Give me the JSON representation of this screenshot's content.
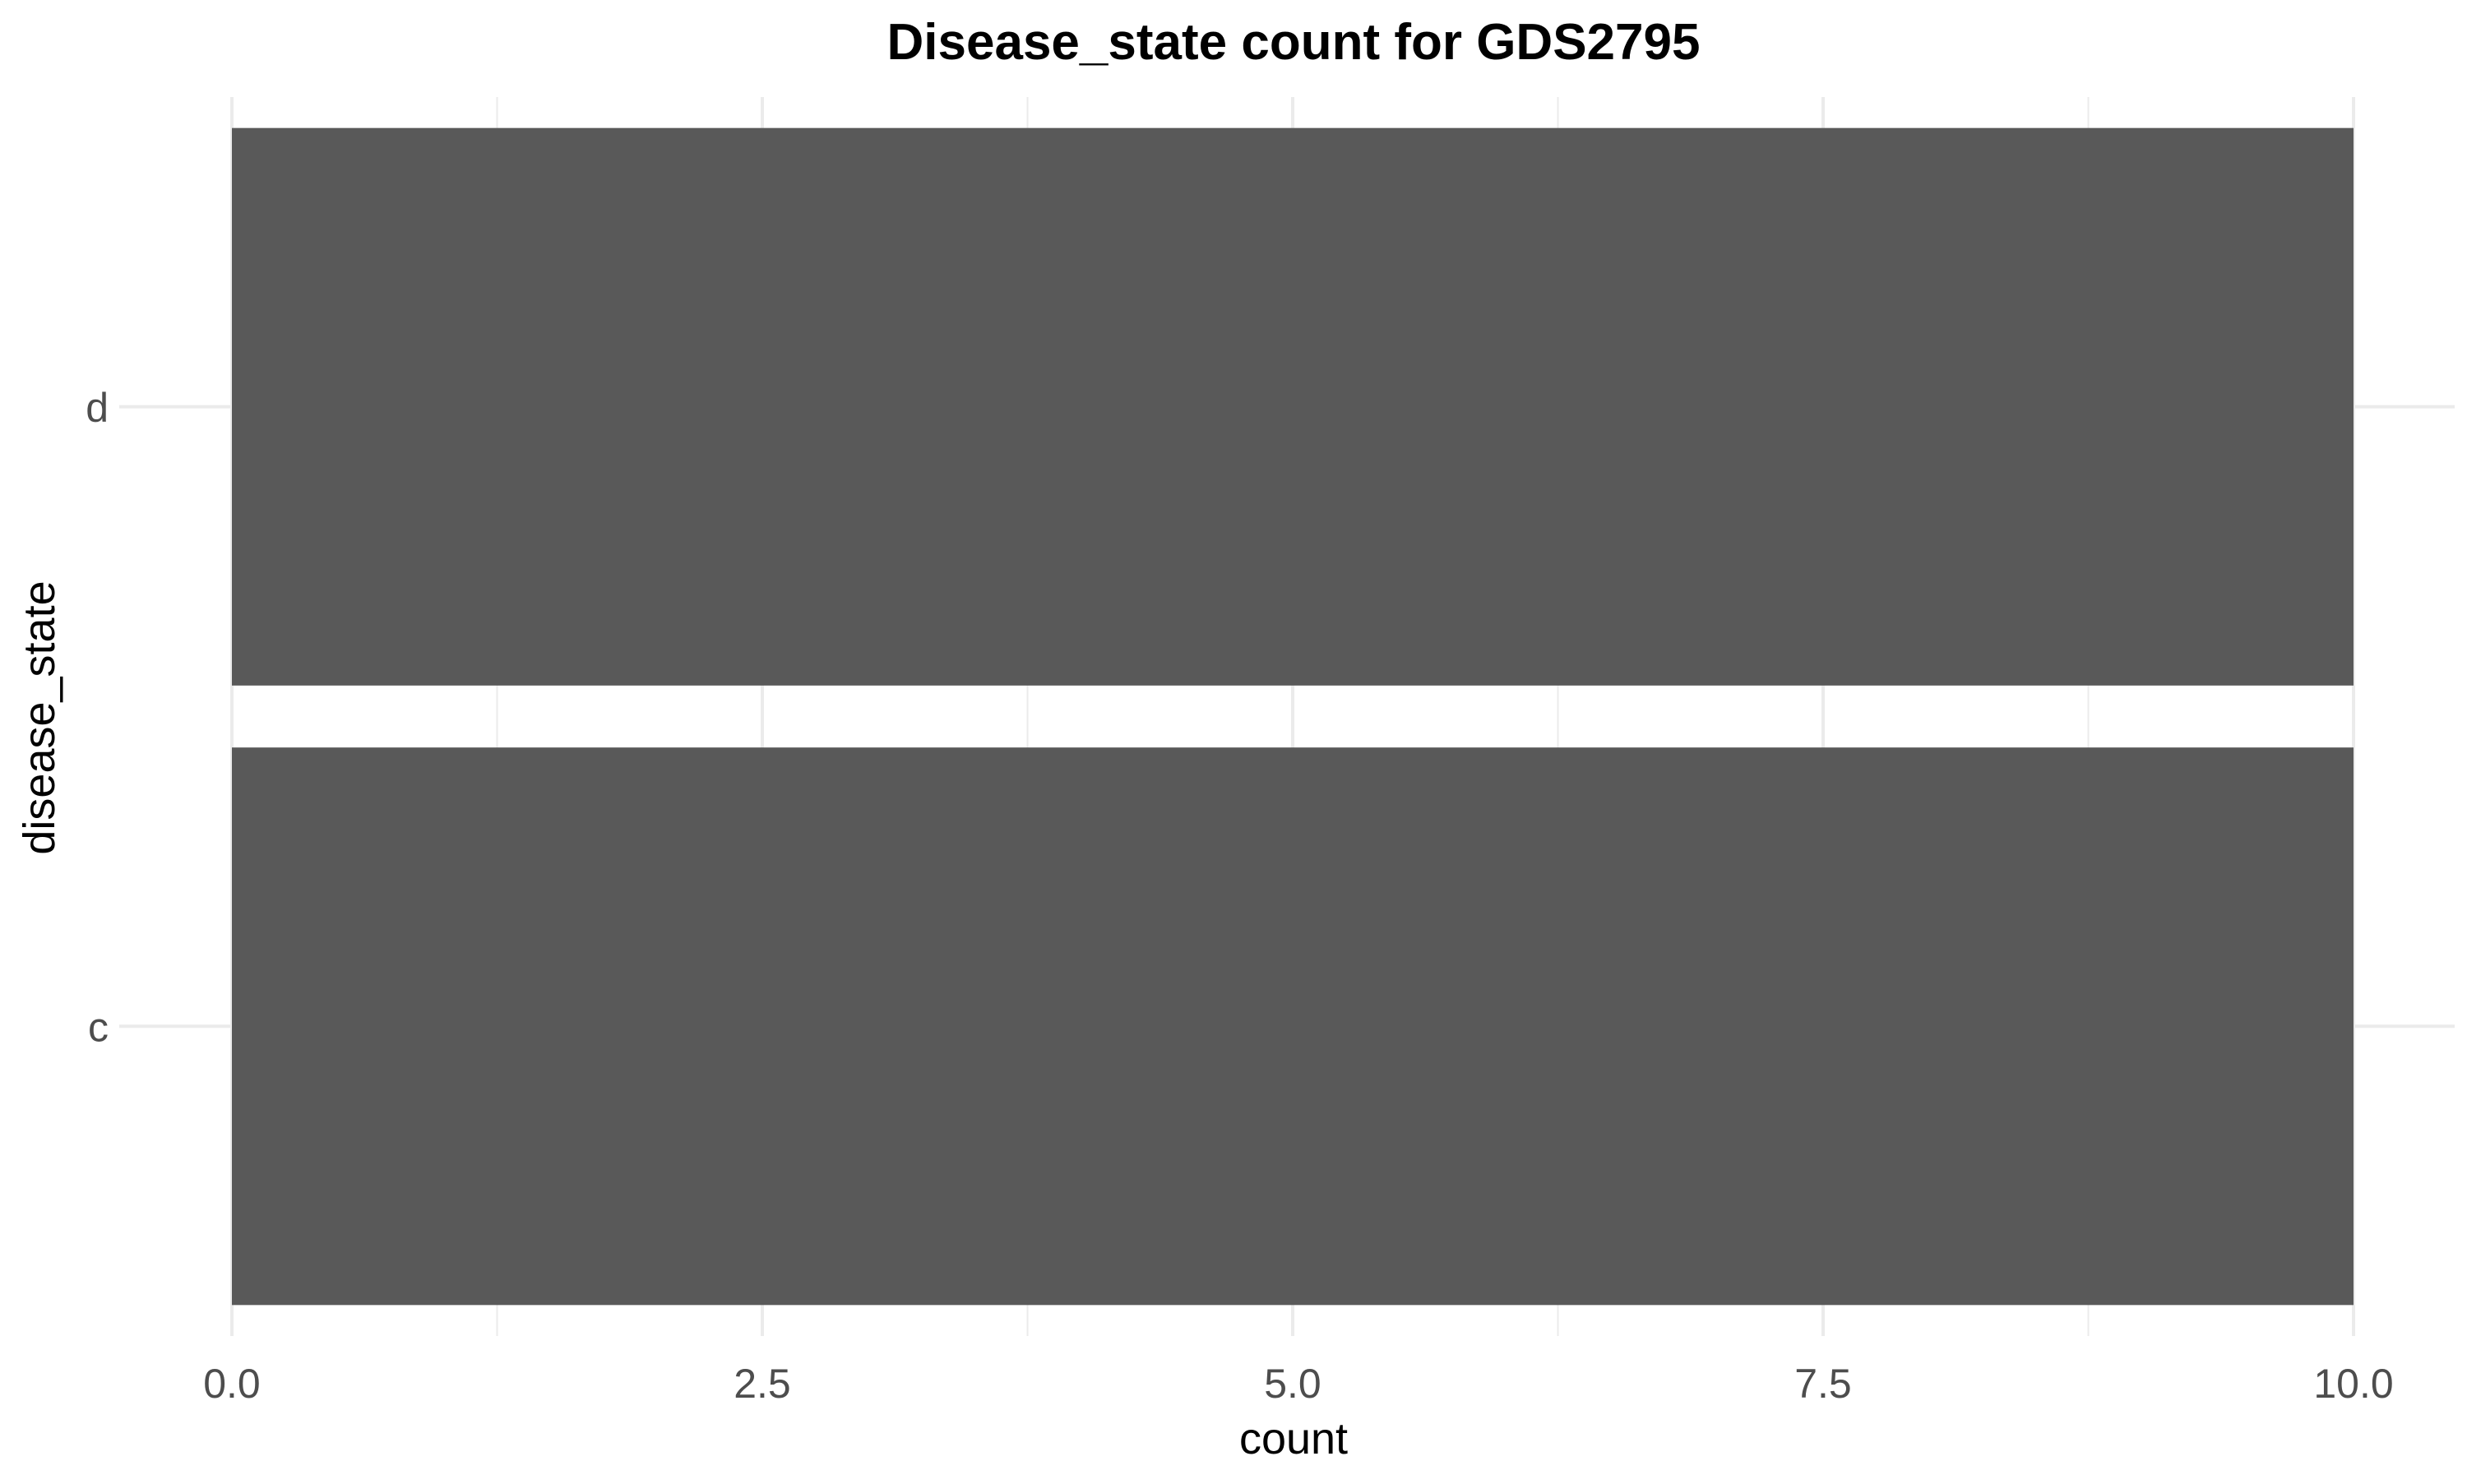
{
  "chart_data": {
    "type": "bar",
    "orientation": "horizontal",
    "title": "Disease_state count for GDS2795",
    "xlabel": "count",
    "ylabel": "disease_state",
    "categories": [
      "c",
      "d"
    ],
    "values": [
      10,
      10
    ],
    "xlim": [
      0,
      10
    ],
    "x_ticks": [
      0,
      2.5,
      5,
      7.5,
      10
    ],
    "x_tick_labels": [
      "0.0",
      "2.5",
      "5.0",
      "7.5",
      "10.0"
    ],
    "bar_color": "#595959",
    "grid": true,
    "legend": "none"
  }
}
